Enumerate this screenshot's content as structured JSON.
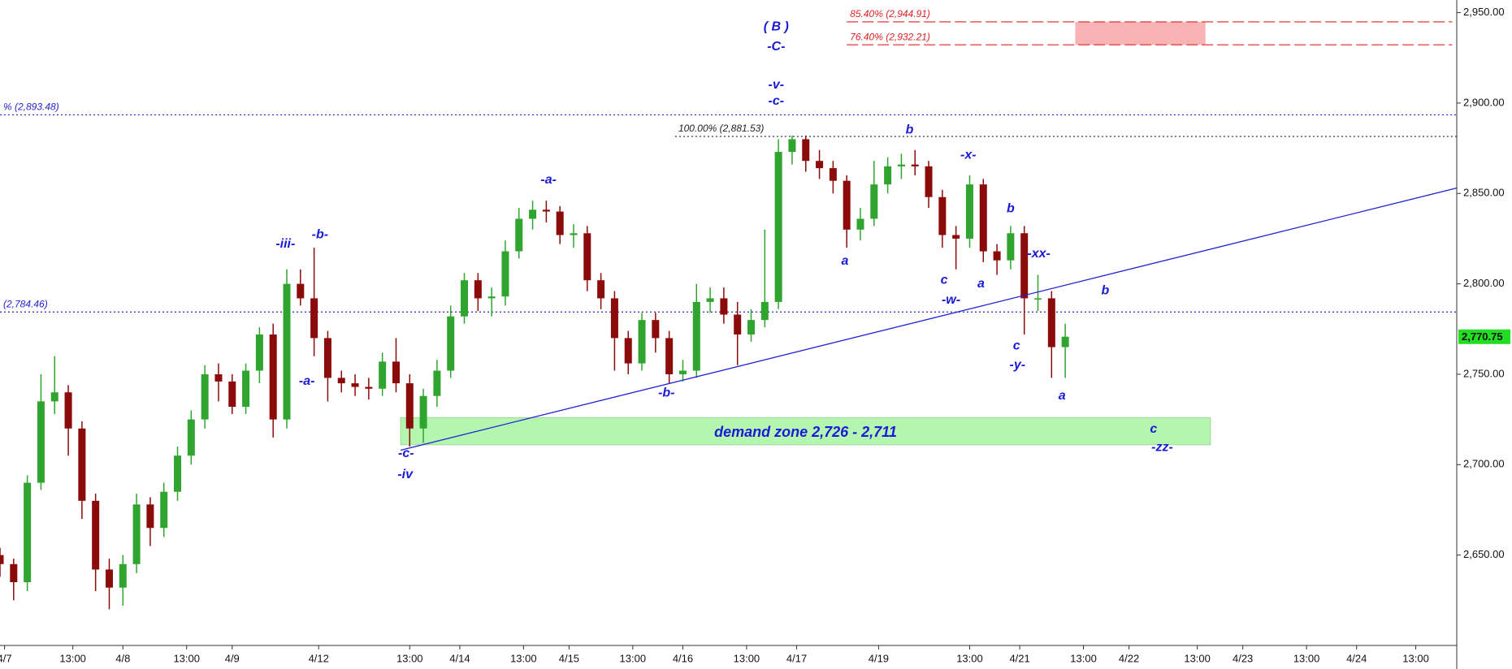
{
  "chart_data": {
    "type": "candlestick",
    "xlim": [
      0,
      320
    ],
    "ylim": [
      2600,
      2957
    ],
    "yticks": [
      {
        "value": 2650,
        "label": "2,650.00"
      },
      {
        "value": 2700,
        "label": "2,700.00"
      },
      {
        "value": 2750,
        "label": "2,750.00"
      },
      {
        "value": 2800,
        "label": "2,800.00"
      },
      {
        "value": 2850,
        "label": "2,850.00"
      },
      {
        "value": 2900,
        "label": "2,900.00"
      },
      {
        "value": 2950,
        "label": "2,950.00"
      }
    ],
    "xticks": [
      {
        "value": 1,
        "label": "4/7"
      },
      {
        "value": 16,
        "label": "13:00"
      },
      {
        "value": 27,
        "label": "4/8"
      },
      {
        "value": 41,
        "label": "13:00"
      },
      {
        "value": 51,
        "label": "4/9"
      },
      {
        "value": 70,
        "label": "4/12"
      },
      {
        "value": 90,
        "label": "13:00"
      },
      {
        "value": 101,
        "label": "4/14"
      },
      {
        "value": 115,
        "label": "13:00"
      },
      {
        "value": 125,
        "label": "4/15"
      },
      {
        "value": 139,
        "label": "13:00"
      },
      {
        "value": 150,
        "label": "4/16"
      },
      {
        "value": 164,
        "label": "13:00"
      },
      {
        "value": 175,
        "label": "4/17"
      },
      {
        "value": 193,
        "label": "4/19"
      },
      {
        "value": 213,
        "label": "13:00"
      },
      {
        "value": 224,
        "label": "4/21"
      },
      {
        "value": 238,
        "label": "13:00"
      },
      {
        "value": 248,
        "label": "4/22"
      },
      {
        "value": 263,
        "label": "13:00"
      },
      {
        "value": 273,
        "label": "4/23"
      },
      {
        "value": 287,
        "label": "13:00"
      },
      {
        "value": 298,
        "label": "4/24"
      },
      {
        "value": 311,
        "label": "13:00"
      }
    ],
    "up_color": "#2fa52f",
    "down_color": "#8b0a0a",
    "x": [
      0,
      3,
      6,
      9,
      12,
      15,
      18,
      21,
      24,
      27,
      30,
      33,
      36,
      39,
      42,
      45,
      48,
      51,
      54,
      57,
      60,
      63,
      66,
      69,
      72,
      75,
      78,
      81,
      84,
      87,
      90,
      93,
      96,
      99,
      102,
      105,
      108,
      111,
      114,
      117,
      120,
      123,
      126,
      129,
      132,
      135,
      138,
      141,
      144,
      147,
      150,
      153,
      156,
      159,
      162,
      165,
      168,
      171,
      174,
      177,
      180,
      183,
      186,
      189,
      192,
      195,
      198,
      201,
      204,
      207,
      210,
      213,
      216,
      219,
      222,
      225,
      228,
      231,
      234
    ],
    "open": [
      2650,
      2645,
      2635,
      2690,
      2735,
      2740,
      2720,
      2680,
      2642,
      2632,
      2645,
      2678,
      2665,
      2685,
      2705,
      2725,
      2750,
      2746,
      2732,
      2752,
      2772,
      2725,
      2800,
      2792,
      2770,
      2748,
      2745,
      2743,
      2742,
      2757,
      2745,
      2720,
      2738,
      2752,
      2782,
      2802,
      2792,
      2793,
      2818,
      2836,
      2841,
      2840,
      2827,
      2828,
      2802,
      2792,
      2770,
      2756,
      2780,
      2770,
      2750,
      2752,
      2790,
      2792,
      2783,
      2772,
      2780,
      2790,
      2873,
      2880,
      2868,
      2864,
      2857,
      2830,
      2836,
      2855,
      2865,
      2866,
      2865,
      2848,
      2827,
      2825,
      2855,
      2818,
      2813,
      2828,
      2792,
      2792,
      2765
    ],
    "high": [
      2654,
      2648,
      2694,
      2750,
      2760,
      2744,
      2724,
      2684,
      2648,
      2650,
      2684,
      2682,
      2690,
      2710,
      2730,
      2755,
      2756,
      2750,
      2756,
      2776,
      2778,
      2808,
      2808,
      2820,
      2774,
      2752,
      2750,
      2748,
      2762,
      2770,
      2750,
      2742,
      2758,
      2788,
      2806,
      2806,
      2798,
      2824,
      2842,
      2846,
      2846,
      2843,
      2833,
      2832,
      2806,
      2796,
      2774,
      2784,
      2784,
      2774,
      2758,
      2800,
      2798,
      2798,
      2790,
      2786,
      2830,
      2880,
      2882,
      2882,
      2874,
      2868,
      2860,
      2842,
      2868,
      2870,
      2872,
      2874,
      2868,
      2852,
      2832,
      2860,
      2858,
      2822,
      2832,
      2832,
      2805,
      2796,
      2778
    ],
    "low": [
      2638,
      2625,
      2630,
      2686,
      2728,
      2705,
      2670,
      2630,
      2620,
      2622,
      2640,
      2655,
      2660,
      2680,
      2700,
      2720,
      2735,
      2728,
      2728,
      2745,
      2715,
      2720,
      2788,
      2760,
      2735,
      2740,
      2738,
      2736,
      2738,
      2740,
      2710,
      2712,
      2732,
      2748,
      2778,
      2785,
      2782,
      2788,
      2814,
      2830,
      2834,
      2822,
      2820,
      2796,
      2786,
      2752,
      2750,
      2752,
      2762,
      2745,
      2746,
      2748,
      2784,
      2778,
      2755,
      2768,
      2776,
      2786,
      2866,
      2862,
      2858,
      2850,
      2820,
      2824,
      2832,
      2850,
      2858,
      2860,
      2842,
      2820,
      2808,
      2820,
      2812,
      2805,
      2808,
      2772,
      2785,
      2748,
      2748
    ],
    "close": [
      2645,
      2635,
      2690,
      2735,
      2740,
      2720,
      2680,
      2642,
      2632,
      2645,
      2678,
      2665,
      2685,
      2705,
      2725,
      2750,
      2746,
      2732,
      2752,
      2772,
      2725,
      2800,
      2792,
      2770,
      2748,
      2745,
      2743,
      2742,
      2757,
      2745,
      2720,
      2738,
      2752,
      2782,
      2802,
      2792,
      2793,
      2818,
      2836,
      2841,
      2840,
      2827,
      2828,
      2802,
      2792,
      2770,
      2756,
      2780,
      2770,
      2750,
      2752,
      2790,
      2792,
      2783,
      2772,
      2780,
      2790,
      2873,
      2880,
      2868,
      2864,
      2857,
      2830,
      2836,
      2855,
      2865,
      2866,
      2865,
      2848,
      2827,
      2825,
      2855,
      2818,
      2813,
      2828,
      2792,
      2792,
      2765,
      2770.75
    ],
    "last_price": {
      "value": 2770.75,
      "label": "2,770.75",
      "color": "#22dd22"
    },
    "levels": [
      {
        "label": "% (2,893.48)",
        "value": 2893.48,
        "color": "#2323d0",
        "xrange": [
          0,
          320
        ]
      },
      {
        "label": "(2,784.46)",
        "value": 2784.46,
        "color": "#2323d0",
        "xrange": [
          0,
          320
        ]
      },
      {
        "label": "100.00% (2,881.53)",
        "value": 2881.53,
        "color": "#222222",
        "xrange": [
          148.3,
          320
        ]
      },
      {
        "label": "85.40% (2,944.91)",
        "value": 2944.91,
        "color": "#dd2222",
        "xrange": [
          186,
          319
        ]
      },
      {
        "label": "76.40% (2,932.21)",
        "value": 2932.21,
        "color": "#dd2222",
        "xrange": [
          186,
          319
        ]
      }
    ],
    "zones": [
      {
        "label": "demand zone 2,726 - 2,711",
        "xrange": [
          88,
          265.9
        ],
        "yrange": [
          2711,
          2726
        ],
        "color": "#b4f5b0"
      },
      {
        "xrange": [
          236.2,
          264.8
        ],
        "yrange": [
          2932.21,
          2944.91
        ],
        "color": "#f8b4b4"
      }
    ],
    "trendline": {
      "x": [
        88,
        320
      ],
      "y": [
        2708,
        2853
      ],
      "color": "#2323d0"
    },
    "annotations": [
      {
        "text": "( B )",
        "x": 170.5,
        "y": 2942
      },
      {
        "text": "-C-",
        "x": 170.5,
        "y": 2931
      },
      {
        "text": "-v-",
        "x": 170.5,
        "y": 2910
      },
      {
        "text": "-c-",
        "x": 170.5,
        "y": 2901
      },
      {
        "text": "-a-",
        "x": 120.5,
        "y": 2857.5
      },
      {
        "text": "-iii-",
        "x": 62.7,
        "y": 2822
      },
      {
        "text": "-b-",
        "x": 70.3,
        "y": 2827
      },
      {
        "text": "-a-",
        "x": 67.4,
        "y": 2746
      },
      {
        "text": "-c-",
        "x": 89.2,
        "y": 2706
      },
      {
        "text": "-iv",
        "x": 89,
        "y": 2694.5
      },
      {
        "text": "-b-",
        "x": 146.4,
        "y": 2739.5
      },
      {
        "text": "b",
        "x": 199.8,
        "y": 2885
      },
      {
        "text": "a",
        "x": 185.6,
        "y": 2812.5
      },
      {
        "text": "-x-",
        "x": 212.7,
        "y": 2871
      },
      {
        "text": "c",
        "x": 207.4,
        "y": 2802
      },
      {
        "text": "-w-",
        "x": 208.9,
        "y": 2791
      },
      {
        "text": "a",
        "x": 215.5,
        "y": 2800
      },
      {
        "text": "b",
        "x": 222,
        "y": 2841.5
      },
      {
        "text": "-xx-",
        "x": 228.2,
        "y": 2816.5
      },
      {
        "text": "c",
        "x": 223.3,
        "y": 2765.5
      },
      {
        "text": "-y-",
        "x": 223.5,
        "y": 2755
      },
      {
        "text": "a",
        "x": 233.3,
        "y": 2738
      },
      {
        "text": "b",
        "x": 242.8,
        "y": 2796
      },
      {
        "text": "c",
        "x": 253.4,
        "y": 2719.5
      },
      {
        "text": "-zz-",
        "x": 255.3,
        "y": 2709.5
      }
    ]
  }
}
